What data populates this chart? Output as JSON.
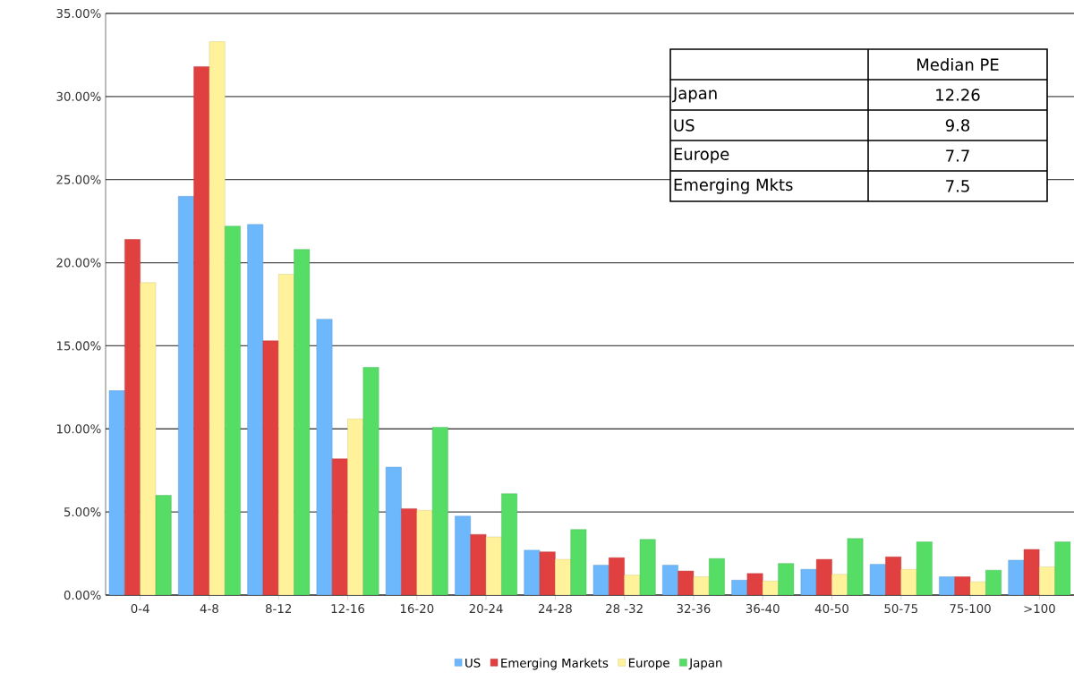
{
  "chart_data": {
    "type": "bar",
    "categories": [
      "0-4",
      "4-8",
      "8-12",
      "12-16",
      "16-20",
      "20-24",
      "24-28",
      "28 -32",
      "32-36",
      "36-40",
      "40-50",
      "50-75",
      "75-100",
      ">100"
    ],
    "series": [
      {
        "name": "US",
        "color": "#6db8fc",
        "values": [
          12.3,
          24.0,
          22.3,
          16.6,
          7.7,
          4.75,
          2.7,
          1.8,
          1.8,
          0.9,
          1.55,
          1.85,
          1.1,
          2.1
        ]
      },
      {
        "name": "Emerging Markets",
        "color": "#e04040",
        "values": [
          21.4,
          31.8,
          15.3,
          8.2,
          5.2,
          3.65,
          2.6,
          2.25,
          1.45,
          1.3,
          2.15,
          2.3,
          1.1,
          2.75
        ]
      },
      {
        "name": "Europe",
        "color": "#fff29a",
        "values": [
          18.8,
          33.3,
          19.3,
          10.6,
          5.1,
          3.5,
          2.15,
          1.2,
          1.1,
          0.85,
          1.25,
          1.55,
          0.8,
          1.7
        ]
      },
      {
        "name": "Japan",
        "color": "#55dd66",
        "values": [
          6.0,
          22.2,
          20.8,
          13.7,
          10.1,
          6.1,
          3.95,
          3.35,
          2.2,
          1.9,
          3.4,
          3.2,
          1.5,
          3.2
        ]
      }
    ],
    "ylim": [
      0,
      35
    ],
    "yticks": [
      {
        "value": 0,
        "label": "0.00%"
      },
      {
        "value": 5,
        "label": "5.00%"
      },
      {
        "value": 10,
        "label": "10.00%"
      },
      {
        "value": 15,
        "label": "15.00%"
      },
      {
        "value": 20,
        "label": "20.00%"
      },
      {
        "value": 25,
        "label": "25.00%"
      },
      {
        "value": 30,
        "label": "30.00%"
      },
      {
        "value": 35,
        "label": "35.00%"
      }
    ],
    "grid": "y",
    "legend": "bottom",
    "annotations": [
      "Median PE",
      "Japan",
      "12.26",
      "US",
      "9.8",
      "Europe",
      "7.7",
      "Emerging Mkts",
      "7.5"
    ]
  }
}
